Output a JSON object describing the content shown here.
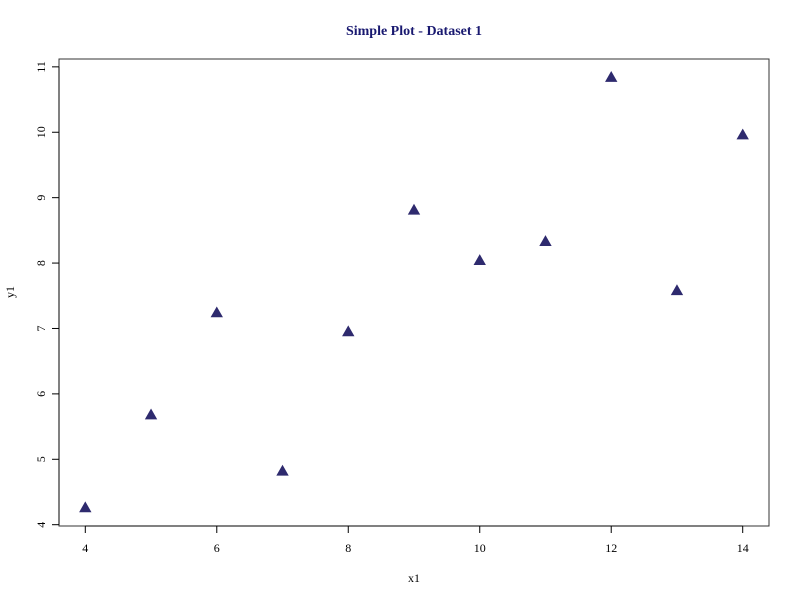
{
  "chart_data": {
    "type": "scatter",
    "title": "Simple Plot - Dataset 1",
    "xlabel": "x1",
    "ylabel": "y1",
    "x": [
      4,
      5,
      6,
      7,
      8,
      9,
      10,
      11,
      12,
      13,
      14
    ],
    "y": [
      4.26,
      5.68,
      7.24,
      4.82,
      6.95,
      8.81,
      8.04,
      8.33,
      10.84,
      7.58,
      9.96
    ],
    "xlim": [
      3.6,
      14.4
    ],
    "ylim": [
      3.98,
      11.12
    ],
    "xticks": [
      4,
      6,
      8,
      10,
      12,
      14
    ],
    "yticks": [
      4,
      5,
      6,
      7,
      8,
      9,
      10,
      11
    ],
    "marker": "triangle",
    "grid": false,
    "legend": false,
    "colors": {
      "title": "#191970",
      "points": "#2e2a6e",
      "axes": "#000000",
      "background": "#ffffff"
    }
  }
}
